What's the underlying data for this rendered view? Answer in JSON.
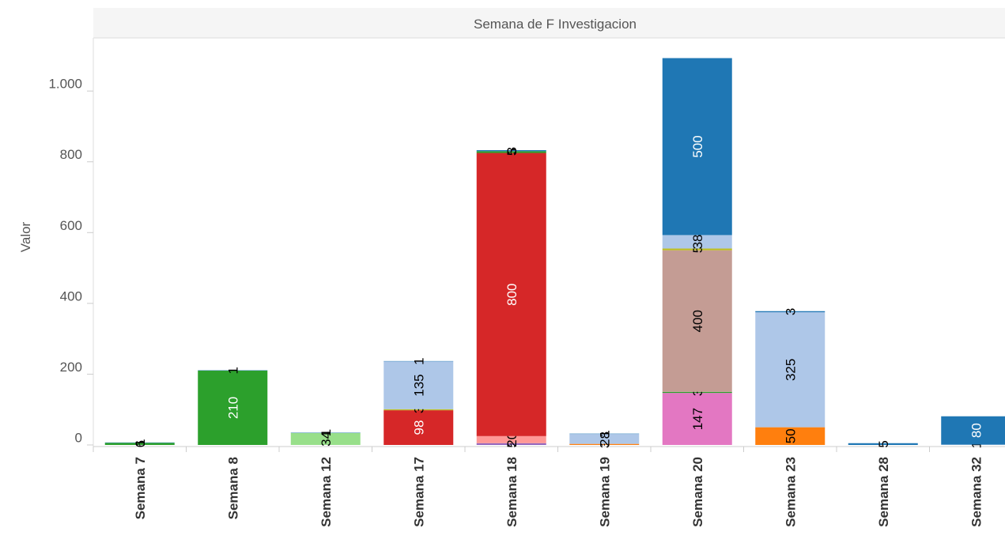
{
  "chart_data": {
    "type": "stacked_bar",
    "title": "Semana de F Investigacion",
    "ylabel": "Valor",
    "categories": [
      "Semana 7",
      "Semana 8",
      "Semana 12",
      "Semana 17",
      "Semana 18",
      "Semana 19",
      "Semana 20",
      "Semana 23",
      "Semana 28",
      "Semana 32"
    ],
    "series": [
      {
        "color": "#9467bd",
        "values": [
          null,
          null,
          null,
          null,
          5,
          null,
          null,
          null,
          null,
          null
        ]
      },
      {
        "color": "#e377c2",
        "values": [
          null,
          null,
          null,
          null,
          null,
          null,
          147,
          null,
          null,
          null
        ]
      },
      {
        "color": "#ff9896",
        "values": [
          null,
          null,
          null,
          null,
          20,
          null,
          null,
          null,
          null,
          null
        ]
      },
      {
        "color": "#ff7f0e",
        "values": [
          null,
          null,
          null,
          null,
          null,
          3,
          null,
          50,
          null,
          null
        ]
      },
      {
        "color": "#d62728",
        "values": [
          null,
          null,
          null,
          98,
          800,
          null,
          null,
          null,
          null,
          null
        ]
      },
      {
        "color": "#2ca02c",
        "values": [
          6,
          210,
          null,
          null,
          5,
          null,
          3,
          null,
          null,
          null
        ]
      },
      {
        "color": "#98df8a",
        "values": [
          null,
          null,
          34,
          null,
          null,
          null,
          null,
          null,
          null,
          null
        ]
      },
      {
        "color": "#c49c94",
        "values": [
          null,
          null,
          null,
          null,
          null,
          null,
          400,
          null,
          null,
          null
        ]
      },
      {
        "color": "#bcbd22",
        "values": [
          null,
          null,
          null,
          3,
          null,
          null,
          5,
          null,
          null,
          null
        ]
      },
      {
        "color": "#aec7e8",
        "values": [
          null,
          null,
          null,
          135,
          null,
          28,
          38,
          325,
          null,
          1
        ]
      },
      {
        "color": "#1f77b4",
        "values": [
          1,
          1,
          1,
          1,
          3,
          1,
          500,
          3,
          5,
          80
        ]
      }
    ],
    "ylim": [
      0,
      1150
    ],
    "yticks": [
      0,
      200,
      400,
      600,
      800,
      {
        "value": 1000,
        "label": "1.000"
      }
    ],
    "grid": false
  }
}
